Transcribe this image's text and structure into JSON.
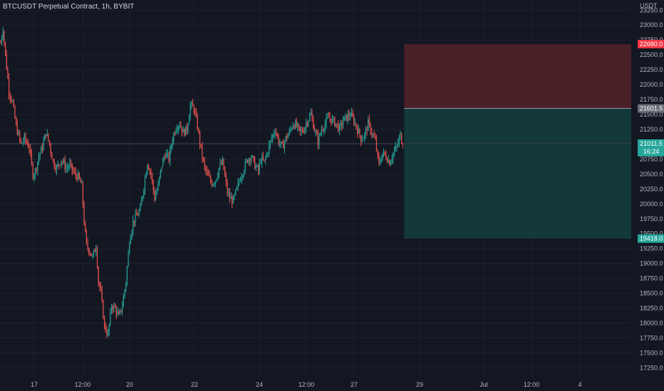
{
  "header": {
    "title": "BTCUSDT Perpetual Contract, 1h, BYBIT"
  },
  "colors": {
    "background": "#131722",
    "grid": "#1e2230",
    "up": "#26a69a",
    "down": "#ef5350",
    "stop_zone": "#4a2127",
    "target_zone": "#13393a",
    "axis_text": "#b2b5be"
  },
  "chart_data": {
    "type": "candlestick",
    "y_unit": "USDT",
    "ylim": [
      17100,
      23420
    ],
    "y_ticks": [
      "17250.0",
      "17500.0",
      "17750.0",
      "18000.0",
      "18250.0",
      "18500.0",
      "18750.0",
      "19000.0",
      "19250.0",
      "19500.0",
      "19750.0",
      "20000.0",
      "20250.0",
      "20500.0",
      "20750.0",
      "21000.0",
      "21250.0",
      "21500.0",
      "21750.0",
      "22000.0",
      "22250.0",
      "22500.0",
      "22750.0",
      "23000.0",
      "23250.0"
    ],
    "x_ticks": [
      "17",
      "12:00",
      "20",
      "22",
      "24",
      "12:00",
      "27",
      "29",
      "Jul",
      "12:00",
      "4"
    ],
    "grid": true,
    "price_tags": [
      {
        "name": "stop-loss",
        "label": "22680.0",
        "value": 22680,
        "color": "#f23645"
      },
      {
        "name": "entry",
        "label": "21601.5",
        "value": 21601.5,
        "color": "#6a6d78"
      },
      {
        "name": "last-price",
        "label": "21011.5",
        "sub": "16:24",
        "value": 21011.5,
        "color": "#26a69a"
      },
      {
        "name": "take-profit",
        "label": "19418.0",
        "value": 19418,
        "color": "#26a69a"
      }
    ],
    "position": {
      "type": "long",
      "entry": 21601.5,
      "stop": 22680,
      "target": 19418
    },
    "price_path": [
      [
        0,
        22700
      ],
      [
        2,
        22950
      ],
      [
        4,
        22500
      ],
      [
        7,
        21900
      ],
      [
        10,
        21700
      ],
      [
        13,
        21300
      ],
      [
        17,
        21000
      ],
      [
        20,
        21100
      ],
      [
        24,
        20950
      ],
      [
        27,
        20500
      ],
      [
        29,
        20550
      ],
      [
        32,
        20800
      ],
      [
        35,
        20950
      ],
      [
        38,
        21200
      ],
      [
        41,
        21000
      ],
      [
        44,
        20700
      ],
      [
        47,
        20600
      ],
      [
        51,
        20750
      ],
      [
        55,
        20600
      ],
      [
        58,
        20650
      ],
      [
        62,
        20500
      ],
      [
        65,
        20450
      ],
      [
        68,
        20300
      ],
      [
        70,
        19700
      ],
      [
        72,
        19300
      ],
      [
        75,
        19200
      ],
      [
        77,
        19100
      ],
      [
        80,
        19300
      ],
      [
        82,
        18700
      ],
      [
        84,
        18500
      ],
      [
        87,
        17950
      ],
      [
        90,
        17800
      ],
      [
        93,
        18300
      ],
      [
        96,
        18250
      ],
      [
        99,
        18100
      ],
      [
        102,
        18300
      ],
      [
        105,
        18700
      ],
      [
        108,
        19400
      ],
      [
        111,
        19700
      ],
      [
        114,
        19800
      ],
      [
        117,
        19900
      ],
      [
        120,
        20300
      ],
      [
        123,
        20700
      ],
      [
        126,
        20500
      ],
      [
        129,
        20100
      ],
      [
        132,
        20300
      ],
      [
        135,
        20650
      ],
      [
        138,
        20850
      ],
      [
        141,
        20750
      ],
      [
        144,
        21100
      ],
      [
        147,
        21300
      ],
      [
        150,
        21350
      ],
      [
        153,
        21200
      ],
      [
        156,
        21250
      ],
      [
        159,
        21650
      ],
      [
        162,
        21600
      ],
      [
        165,
        21300
      ],
      [
        168,
        20900
      ],
      [
        171,
        20600
      ],
      [
        174,
        20450
      ],
      [
        177,
        20350
      ],
      [
        180,
        20400
      ],
      [
        183,
        20600
      ],
      [
        186,
        20700
      ],
      [
        188,
        20450
      ],
      [
        190,
        20200
      ],
      [
        192,
        20100
      ],
      [
        195,
        20050
      ],
      [
        198,
        20250
      ],
      [
        201,
        20450
      ],
      [
        204,
        20600
      ],
      [
        207,
        20750
      ],
      [
        210,
        20800
      ],
      [
        213,
        20650
      ],
      [
        216,
        20550
      ],
      [
        218,
        20750
      ],
      [
        221,
        20700
      ],
      [
        224,
        20900
      ],
      [
        227,
        21100
      ],
      [
        230,
        21250
      ],
      [
        233,
        21050
      ],
      [
        236,
        20950
      ],
      [
        239,
        21100
      ],
      [
        242,
        21200
      ],
      [
        245,
        21350
      ],
      [
        248,
        21300
      ],
      [
        251,
        21200
      ],
      [
        254,
        21250
      ],
      [
        257,
        21400
      ],
      [
        260,
        21500
      ],
      [
        263,
        21250
      ],
      [
        266,
        21050
      ],
      [
        269,
        21250
      ],
      [
        272,
        21350
      ],
      [
        275,
        21450
      ],
      [
        278,
        21400
      ],
      [
        281,
        21350
      ],
      [
        284,
        21250
      ],
      [
        287,
        21400
      ],
      [
        290,
        21450
      ],
      [
        293,
        21500
      ],
      [
        296,
        21400
      ],
      [
        299,
        21250
      ],
      [
        302,
        21100
      ],
      [
        305,
        21150
      ],
      [
        308,
        21350
      ],
      [
        311,
        21200
      ],
      [
        314,
        21050
      ],
      [
        317,
        20650
      ],
      [
        320,
        20850
      ],
      [
        323,
        20800
      ],
      [
        326,
        20700
      ],
      [
        329,
        20850
      ],
      [
        332,
        20950
      ],
      [
        335,
        21150
      ],
      [
        337,
        21011.5
      ]
    ],
    "last_candle_index": 337,
    "total_slots": 529
  }
}
